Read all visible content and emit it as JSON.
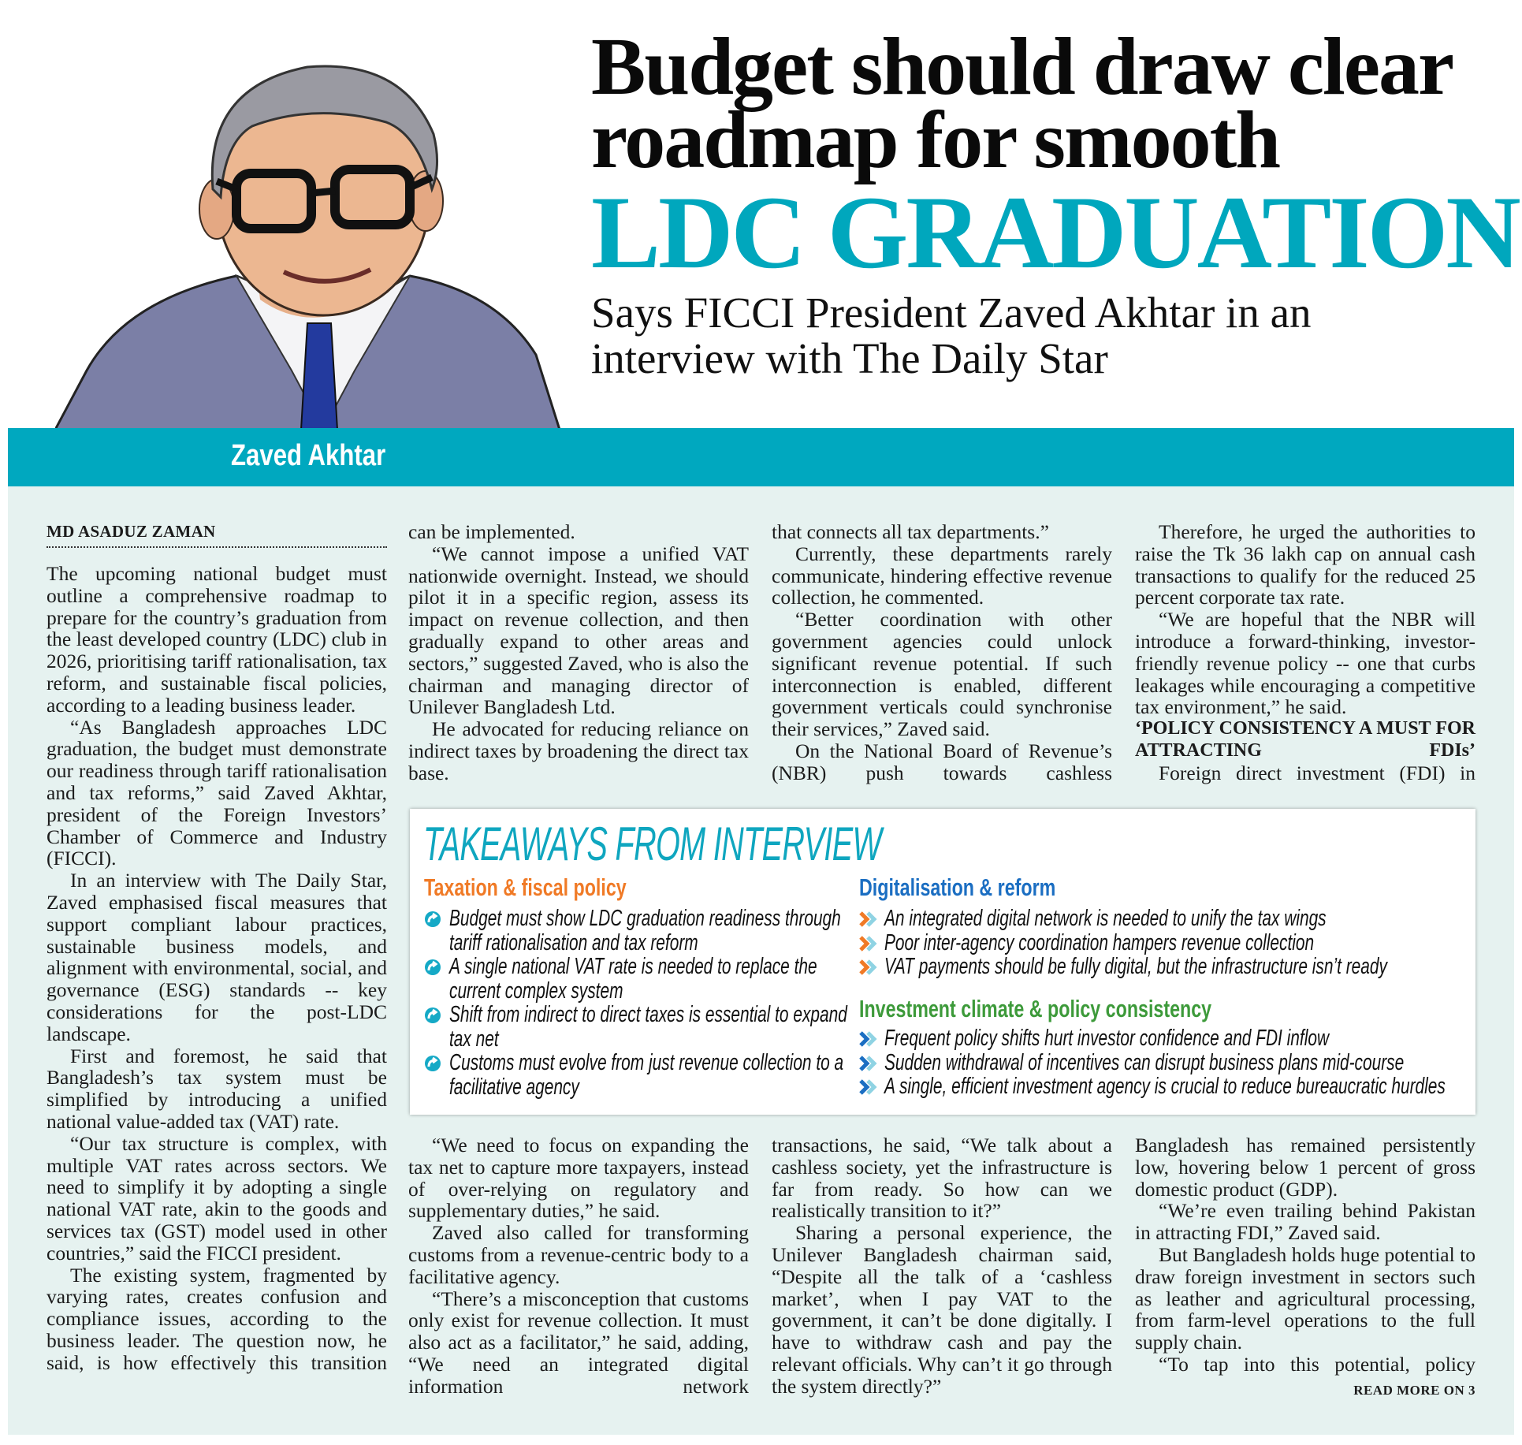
{
  "headline": {
    "line1": "Budget should draw clear",
    "line2": "roadmap for smooth",
    "line3": "LDC GRADUATION",
    "subtitle_line1": "Says FICCI President Zaved Akhtar in an",
    "subtitle_line2": "interview with The Daily Star"
  },
  "portrait": {
    "caption": "Zaved Akhtar"
  },
  "colors": {
    "accent": "#00a8bf",
    "panel": "#e6f2f0",
    "taxation": "#f07a26",
    "digital": "#1b6ec2",
    "investment": "#3d9a3a"
  },
  "byline": "MD ASADUZ ZAMAN",
  "columns_top": [
    [
      {
        "text": "The upcoming national budget must outline a comprehensive roadmap to prepare for the country’s graduation from the least developed country (LDC) club in 2026, prioritising tariff rationalisation, tax reform, and sustainable fiscal policies, according to a leading business leader.",
        "cont": true
      },
      {
        "text": "“As Bangladesh approaches LDC graduation, the budget must demonstrate our readiness through tariff rationalisation and tax reforms,” said Zaved Akhtar, president of the Foreign Investors’ Chamber of Commerce and Industry (FICCI)."
      },
      {
        "text": "In an interview with The Daily Star, Zaved emphasised fiscal measures that support compliant labour practices, sustainable business models, and alignment with environmental, social, and governance (ESG) standards -- key considerations for the post-LDC landscape."
      },
      {
        "text": "First and foremost, he said that Bangladesh’s tax system must be simplified by introducing a unified national value-added tax (VAT) rate."
      },
      {
        "text": "“Our tax structure is complex, with multiple VAT rates across sectors. We need to simplify it by adopting a single national VAT rate, akin to the goods and services tax (GST) model used in other countries,” said the FICCI president."
      },
      {
        "text": "The existing system, fragmented by varying rates, creates confusion and compliance issues, according to the business leader. The question now, he said, is how effectively this transition",
        "jl": true
      }
    ],
    [
      {
        "text": "can be implemented.",
        "cont": true
      },
      {
        "text": "“We cannot impose a unified VAT nationwide overnight. Instead, we should pilot it in a specific region, assess its impact on revenue collection, and then gradually expand to other areas and sectors,” suggested Zaved, who is also the chairman and managing director of Unilever Bangladesh Ltd."
      },
      {
        "text": "He advocated for reducing reliance on indirect taxes by broadening the direct tax base."
      }
    ],
    [
      {
        "text": "that connects all tax departments.”",
        "cont": true
      },
      {
        "text": "Currently, these departments rarely communicate, hindering effective revenue collection, he commented."
      },
      {
        "text": "“Better coordination with other government agencies could unlock significant revenue potential. If such interconnection is enabled, different government verticals could synchronise their services,” Zaved said."
      },
      {
        "text": "On the National Board of Revenue’s (NBR) push towards cashless",
        "jl": true
      }
    ],
    [
      {
        "text": "Therefore, he urged the authorities to raise the Tk 36 lakh cap on annual cash transactions to qualify for the reduced 25 percent corporate tax rate."
      },
      {
        "text": "“We are hopeful that the NBR will introduce a forward-thinking, investor-friendly revenue policy -- one that curbs leakages while encouraging a competitive tax environment,” he said."
      },
      {
        "text": "‘POLICY CONSISTENCY A MUST FOR ATTRACTING FDIs’",
        "subhead": true
      },
      {
        "text": "Foreign direct investment (FDI) in",
        "jl": true
      }
    ]
  ],
  "columns_bottom": [
    [
      {
        "text": "“We need to focus on expanding the tax net to capture more taxpayers, instead of over-relying on regulatory and supplementary duties,” he said."
      },
      {
        "text": "Zaved also called for transforming customs from a revenue-centric body to a facilitative agency."
      },
      {
        "text": "“There’s a misconception that customs only exist for revenue collection. It must also act as a facilitator,” he said, adding, “We need an integrated digital information network",
        "jl": true
      }
    ],
    [
      {
        "text": "transactions, he said, “We talk about a cashless society, yet the infrastructure is far from ready. So how can we realistically transition to it?”",
        "cont": true
      },
      {
        "text": "Sharing a personal experience, the Unilever Bangladesh chairman said, “Despite all the talk of a ‘cashless market’, when I pay VAT to the government, it can’t be done digitally. I have to withdraw cash and pay the relevant officials. Why can’t it go through the system directly?”"
      }
    ],
    [
      {
        "text": "Bangladesh has remained persistently low, hovering below 1 percent of gross domestic product (GDP).",
        "cont": true
      },
      {
        "text": "“We’re even trailing behind Pakistan in attracting FDI,” Zaved said."
      },
      {
        "text": "But Bangladesh holds huge potential to draw foreign investment in sectors such as leather and agricultural processing, from farm-level operations to the full supply chain."
      },
      {
        "text": "“To tap into this potential, policy",
        "jl": true
      }
    ]
  ],
  "read_more": "READ MORE ON 3",
  "takeaways": {
    "title": "TAKEAWAYS FROM INTERVIEW",
    "taxation": {
      "heading": "Taxation & fiscal policy",
      "icon": "circular-arrow-icon",
      "items": [
        "Budget must show LDC graduation readiness through tariff rationalisation and tax reform",
        "A single national VAT rate is needed to replace the current complex system",
        "Shift from indirect to direct taxes is essential to expand tax net",
        "Customs must evolve from just revenue collection to a facilitative agency"
      ]
    },
    "digital": {
      "heading": "Digitalisation & reform",
      "icon": "double-chevron-icon",
      "items": [
        "An integrated digital network is needed to unify the tax wings",
        "Poor inter-agency coordination hampers revenue collection",
        "VAT payments should be fully digital, but the infrastructure isn’t ready"
      ]
    },
    "investment": {
      "heading": "Investment climate & policy consistency",
      "icon": "double-chevron-icon",
      "items": [
        "Frequent policy shifts hurt investor confidence and FDI inflow",
        "Sudden withdrawal of incentives can disrupt business plans mid-course",
        "A single, efficient investment agency is crucial to reduce bureaucratic hurdles"
      ]
    }
  }
}
